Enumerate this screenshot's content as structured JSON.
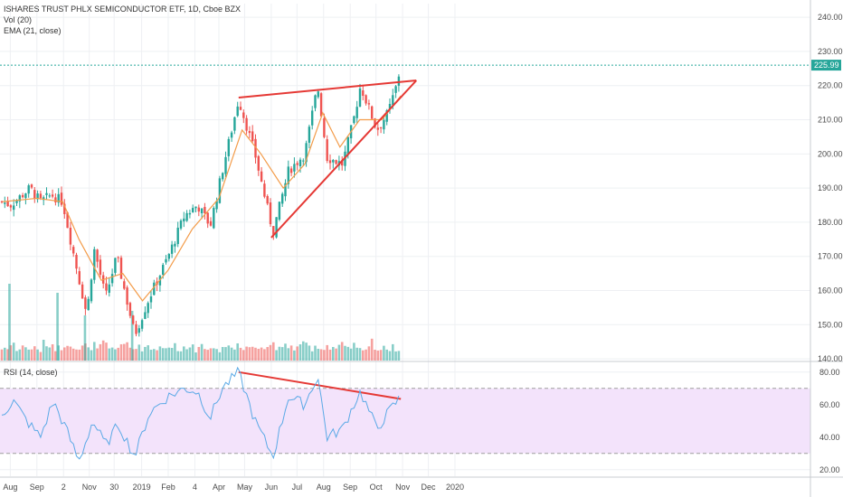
{
  "legend": {
    "symbol_line": "ISHARES TRUST PHLX SEMICONDUCTOR ETF, 1D, Cboe BZX",
    "vol_line": "Vol (20)",
    "ema_line": "EMA (21, close)",
    "rsi_line": "RSI (14, close)"
  },
  "colors": {
    "up": "#26a69a",
    "down": "#ef5350",
    "ema": "#f39c4a",
    "rsi_line": "#5aa9e6",
    "rsi_band": "#f3e3fb",
    "trendline": "#e53935",
    "last_price": "#26a69a",
    "grid": "#eef0f3"
  },
  "last_price_label": "225.99",
  "chart_data": [
    {
      "type": "candlestick",
      "title": "ISHARES TRUST PHLX SEMICONDUCTOR ETF, 1D, Cboe BZX",
      "y_ticks": [
        "140.00",
        "150.00",
        "160.00",
        "170.00",
        "180.00",
        "190.00",
        "200.00",
        "210.00",
        "220.00",
        "230.00",
        "240.00"
      ],
      "ylim": [
        139.5,
        244
      ],
      "x_ticks": [
        "Aug",
        "Sep",
        "2",
        "Nov",
        "30",
        "2019",
        "Feb",
        "4",
        "Apr",
        "May",
        "Jun",
        "Jul",
        "Aug",
        "Sep",
        "Oct",
        "Nov",
        "Dec",
        "2020"
      ],
      "last_price": 225.99,
      "price_path": [
        [
          "2018-07-23",
          186
        ],
        [
          "2018-08-01",
          185
        ],
        [
          "2018-08-15",
          188
        ],
        [
          "2018-08-24",
          190
        ],
        [
          "2018-09-05",
          186
        ],
        [
          "2018-09-18",
          188
        ],
        [
          "2018-10-01",
          186
        ],
        [
          "2018-10-10",
          175
        ],
        [
          "2018-10-29",
          153
        ],
        [
          "2018-11-07",
          172
        ],
        [
          "2018-11-20",
          158
        ],
        [
          "2018-12-03",
          170
        ],
        [
          "2018-12-24",
          147
        ],
        [
          "2019-01-10",
          158
        ],
        [
          "2019-02-01",
          170
        ],
        [
          "2019-02-20",
          182
        ],
        [
          "2019-03-07",
          185
        ],
        [
          "2019-03-22",
          179
        ],
        [
          "2019-04-05",
          195
        ],
        [
          "2019-04-24",
          216
        ],
        [
          "2019-05-13",
          200
        ],
        [
          "2019-06-03",
          177
        ],
        [
          "2019-06-21",
          195
        ],
        [
          "2019-07-10",
          200
        ],
        [
          "2019-07-25",
          220
        ],
        [
          "2019-08-05",
          199
        ],
        [
          "2019-08-23",
          197
        ],
        [
          "2019-09-05",
          210
        ],
        [
          "2019-09-13",
          220
        ],
        [
          "2019-10-02",
          207
        ],
        [
          "2019-10-15",
          212
        ],
        [
          "2019-10-25",
          220
        ],
        [
          "2019-10-30",
          226
        ]
      ],
      "ema_path": [
        [
          "2018-07-23",
          186
        ],
        [
          "2018-09-01",
          187
        ],
        [
          "2018-10-01",
          186
        ],
        [
          "2018-10-20",
          175
        ],
        [
          "2018-11-15",
          163
        ],
        [
          "2018-12-10",
          165
        ],
        [
          "2019-01-02",
          157
        ],
        [
          "2019-02-01",
          166
        ],
        [
          "2019-03-01",
          178
        ],
        [
          "2019-04-01",
          187
        ],
        [
          "2019-04-28",
          207
        ],
        [
          "2019-05-20",
          200
        ],
        [
          "2019-06-15",
          190
        ],
        [
          "2019-07-10",
          197
        ],
        [
          "2019-07-31",
          212
        ],
        [
          "2019-08-20",
          202
        ],
        [
          "2019-09-12",
          210
        ],
        [
          "2019-10-08",
          210
        ],
        [
          "2019-10-30",
          217
        ]
      ]
    },
    {
      "type": "bar",
      "title": "Vol (20)",
      "values": [
        0.3,
        0.4,
        0.3,
        0.5,
        0.9,
        0.2,
        0.3,
        0.4,
        0.5,
        0.3,
        0.3,
        0.4,
        0.3,
        0.2,
        0.6,
        0.4,
        0.5,
        0.4,
        0.3,
        0.5,
        0.4,
        0.3,
        0.7,
        0.6,
        0.5,
        0.4,
        0.3,
        0.4,
        0.5,
        0.3,
        0.4,
        0.5,
        0.3,
        0.4,
        0.6,
        0.5,
        0.3,
        0.4,
        0.3,
        0.5,
        0.4,
        0.5,
        0.6,
        0.4,
        0.3,
        0.5,
        0.4,
        0.3,
        0.4,
        0.5,
        0.3,
        0.4,
        0.3,
        0.4,
        0.5,
        0.4,
        0.3,
        0.4,
        0.5,
        0.3
      ]
    },
    {
      "type": "line",
      "title": "RSI (14, close)",
      "y_ticks": [
        "20.00",
        "40.00",
        "60.00",
        "80.00"
      ],
      "ylim": [
        16,
        86
      ],
      "band": [
        30,
        70
      ],
      "rsi_path": [
        [
          "2018-07-23",
          55
        ],
        [
          "2018-08-05",
          62
        ],
        [
          "2018-08-20",
          50
        ],
        [
          "2018-09-05",
          40
        ],
        [
          "2018-09-20",
          62
        ],
        [
          "2018-10-05",
          45
        ],
        [
          "2018-10-20",
          25
        ],
        [
          "2018-11-05",
          50
        ],
        [
          "2018-11-20",
          35
        ],
        [
          "2018-12-05",
          48
        ],
        [
          "2018-12-24",
          28
        ],
        [
          "2019-01-10",
          55
        ],
        [
          "2019-02-01",
          65
        ],
        [
          "2019-02-20",
          70
        ],
        [
          "2019-03-07",
          68
        ],
        [
          "2019-03-22",
          52
        ],
        [
          "2019-04-05",
          70
        ],
        [
          "2019-04-24",
          80
        ],
        [
          "2019-05-13",
          50
        ],
        [
          "2019-06-03",
          28
        ],
        [
          "2019-06-21",
          65
        ],
        [
          "2019-07-10",
          60
        ],
        [
          "2019-07-25",
          78
        ],
        [
          "2019-08-05",
          40
        ],
        [
          "2019-08-23",
          45
        ],
        [
          "2019-09-05",
          60
        ],
        [
          "2019-09-13",
          68
        ],
        [
          "2019-10-02",
          45
        ],
        [
          "2019-10-15",
          55
        ],
        [
          "2019-10-30",
          65
        ]
      ]
    }
  ]
}
